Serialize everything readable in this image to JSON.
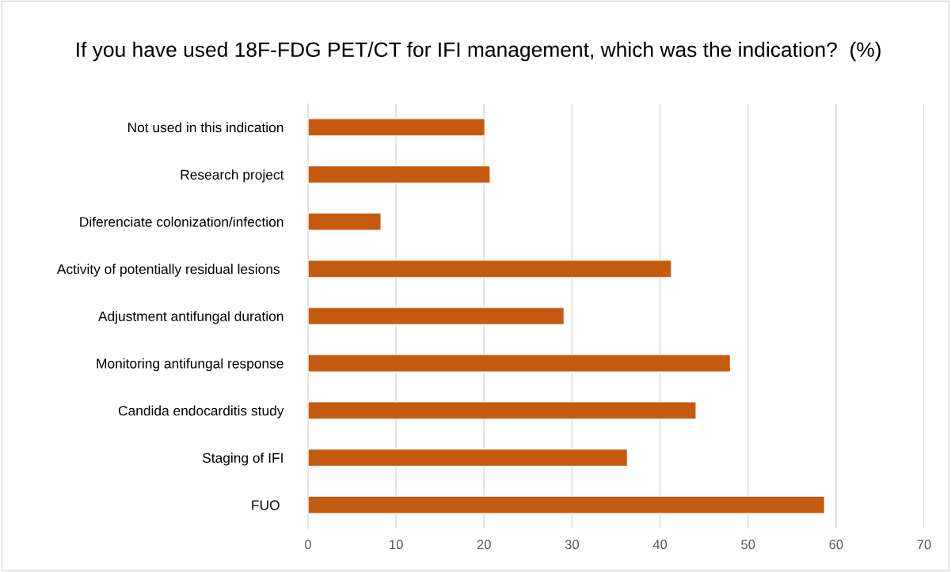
{
  "chart_data": {
    "type": "bar",
    "orientation": "horizontal",
    "title": "If you have used 18F-FDG PET/CT for IFI management, which was the indication?  (%)",
    "categories": [
      "Not used in this indication",
      "Research project",
      "Diferenciate colonization/infection",
      "Activity of potentially residual lesions ",
      "Adjustment antifungal duration",
      "Monitoring antifungal response",
      "Candida endocarditis study",
      "Staging of IFI",
      "FUO "
    ],
    "values": [
      20.1,
      20.7,
      8.3,
      41.3,
      29.1,
      48.0,
      44.1,
      36.3,
      58.7
    ],
    "color": "#c55a11",
    "xlim": [
      0,
      70
    ],
    "xticks": [
      0,
      10,
      20,
      30,
      40,
      50,
      60,
      70
    ],
    "grid": "x"
  }
}
